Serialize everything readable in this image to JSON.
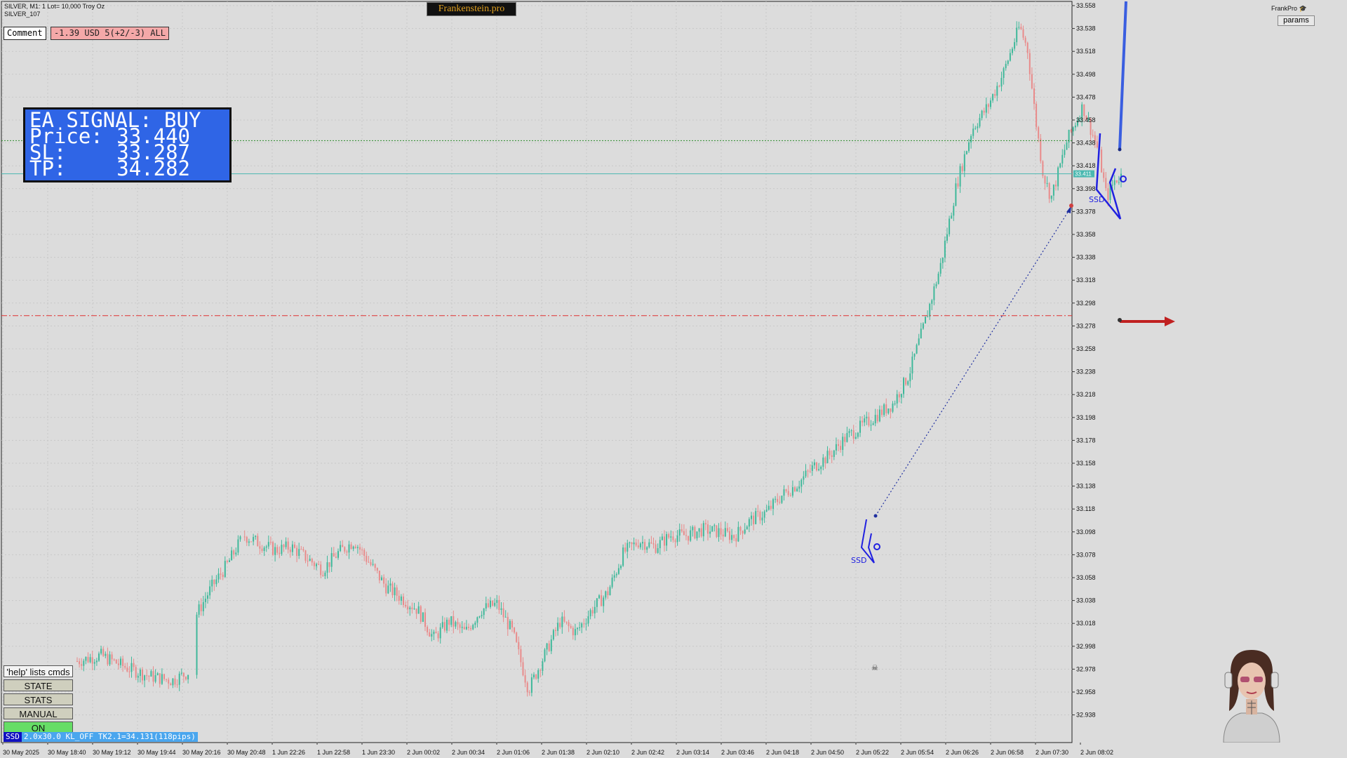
{
  "header": {
    "symbol_line": "SILVER, M1:  1 Lot= 10,000 Troy Oz",
    "account_line": "SILVER_107",
    "brand": "Frankenstein.pro",
    "comment_label": "Comment",
    "pnl_text": "-1.39 USD 5(+2/-3) ALL",
    "frankpro": "FrankPro",
    "params_label": "params"
  },
  "signal_box": {
    "title": "EA SIGNAL: BUY",
    "price_label": "Price:",
    "price_value": "33.440",
    "sl_label": "SL:",
    "sl_value": "33.287",
    "tp_label": "TP:",
    "tp_value": "34.282"
  },
  "commands": {
    "help": "'help' lists cmds",
    "state": "STATE",
    "stats": "STATS",
    "manual": "MANUAL",
    "on": "ON"
  },
  "status_bar": {
    "tag": "SSD",
    "text": "2.0x30.0 KL_OFF TK2.1=34.131(118pips)"
  },
  "markers": {
    "ssd_left": "SSD",
    "ssd_right": "SSD"
  },
  "price_badge": "33.411",
  "colors": {
    "background": "#dcdcdc",
    "bull": "#3fb89a",
    "bear": "#e98a8a",
    "pattern": "#2020e0",
    "sl_line": "#e03030",
    "tp_line": "#2a8a2a",
    "bid_line": "#4ab8b0",
    "on_button": "#66dd66"
  },
  "chart_data": {
    "type": "candlestick",
    "y_ticks": [
      "33.558",
      "33.538",
      "33.518",
      "33.498",
      "33.478",
      "33.458",
      "33.438",
      "33.418",
      "33.398",
      "33.378",
      "33.358",
      "33.338",
      "33.318",
      "33.298",
      "33.278",
      "33.258",
      "33.238",
      "33.218",
      "33.198",
      "33.178",
      "33.158",
      "33.138",
      "33.118",
      "33.098",
      "33.078",
      "33.058",
      "33.038",
      "33.018",
      "32.998",
      "32.978",
      "32.958",
      "32.938"
    ],
    "x_ticks": [
      "30 May 2025",
      "30 May 18:40",
      "30 May 19:12",
      "30 May 19:44",
      "30 May 20:16",
      "30 May 20:48",
      "1 Jun 22:26",
      "1 Jun 22:58",
      "1 Jun 23:30",
      "2 Jun 00:02",
      "2 Jun 00:34",
      "2 Jun 01:06",
      "2 Jun 01:38",
      "2 Jun 02:10",
      "2 Jun 02:42",
      "2 Jun 03:14",
      "2 Jun 03:46",
      "2 Jun 04:18",
      "2 Jun 04:50",
      "2 Jun 05:22",
      "2 Jun 05:54",
      "2 Jun 06:26",
      "2 Jun 06:58",
      "2 Jun 07:30",
      "2 Jun 08:02"
    ],
    "ylim": [
      32.928,
      33.568
    ],
    "price_path": [
      [
        0,
        32.985
      ],
      [
        3,
        32.99
      ],
      [
        6,
        32.98
      ],
      [
        9,
        32.972
      ],
      [
        12,
        32.968
      ],
      [
        14,
        32.975
      ],
      [
        15,
        33.025
      ],
      [
        17,
        33.05
      ],
      [
        19,
        33.07
      ],
      [
        21,
        33.095
      ],
      [
        23,
        33.088
      ],
      [
        25,
        33.082
      ],
      [
        27,
        33.085
      ],
      [
        29,
        33.075
      ],
      [
        31,
        33.065
      ],
      [
        33,
        33.08
      ],
      [
        35,
        33.09
      ],
      [
        37,
        33.07
      ],
      [
        39,
        33.05
      ],
      [
        41,
        33.04
      ],
      [
        43,
        33.03
      ],
      [
        45,
        33.005
      ],
      [
        47,
        33.02
      ],
      [
        49,
        33.01
      ],
      [
        51,
        33.03
      ],
      [
        53,
        33.035
      ],
      [
        55,
        33.01
      ],
      [
        57,
        32.96
      ],
      [
        59,
        32.99
      ],
      [
        61,
        33.02
      ],
      [
        63,
        33.01
      ],
      [
        65,
        33.03
      ],
      [
        67,
        33.045
      ],
      [
        69,
        33.08
      ],
      [
        71,
        33.09
      ],
      [
        73,
        33.085
      ],
      [
        75,
        33.095
      ],
      [
        77,
        33.095
      ],
      [
        79,
        33.1
      ],
      [
        81,
        33.098
      ],
      [
        83,
        33.094
      ],
      [
        85,
        33.108
      ],
      [
        87,
        33.115
      ],
      [
        89,
        33.13
      ],
      [
        91,
        33.14
      ],
      [
        93,
        33.155
      ],
      [
        95,
        33.165
      ],
      [
        97,
        33.18
      ],
      [
        99,
        33.19
      ],
      [
        101,
        33.2
      ],
      [
        103,
        33.21
      ],
      [
        105,
        33.235
      ],
      [
        107,
        33.28
      ],
      [
        109,
        33.33
      ],
      [
        111,
        33.4
      ],
      [
        113,
        33.45
      ],
      [
        115,
        33.47
      ],
      [
        117,
        33.5
      ],
      [
        119,
        33.54
      ],
      [
        120,
        33.52
      ],
      [
        121,
        33.46
      ],
      [
        122,
        33.41
      ],
      [
        123,
        33.39
      ],
      [
        125,
        33.44
      ],
      [
        127,
        33.47
      ],
      [
        129,
        33.43
      ],
      [
        130,
        33.39
      ],
      [
        131,
        33.405
      ],
      [
        132,
        33.41
      ]
    ],
    "price_lines": {
      "current": 33.411,
      "tp_level": 33.44,
      "sl_level": 33.287
    }
  }
}
